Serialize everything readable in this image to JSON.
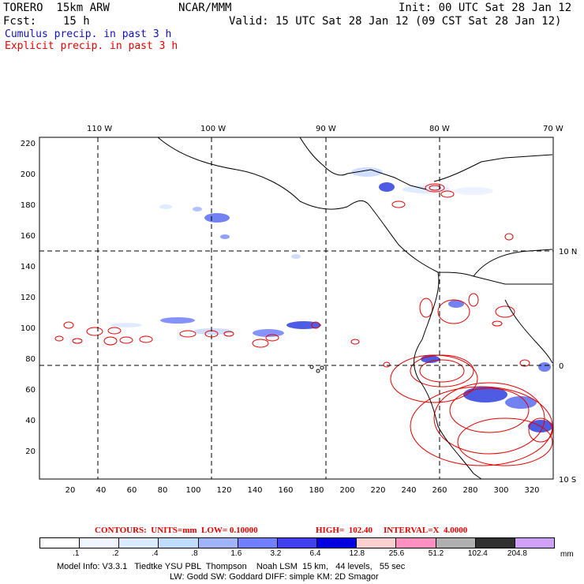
{
  "header": {
    "model": "TORERO  15km ARW",
    "org": "NCAR/MMM",
    "init": "Init: 00 UTC Sat 28 Jan 12",
    "fcst_label": "Fcst:",
    "fcst_value": "15 h",
    "valid": "Valid: 15 UTC Sat 28 Jan 12 (09 CST Sat 28 Jan 12)",
    "line_cumulus": "Cumulus precip. in past 3 h",
    "line_explicit": "Explicit precip. in past 3 h"
  },
  "colors": {
    "cumulus": "#1010c0",
    "explicit": "#e00000",
    "coast": "#000000"
  },
  "map": {
    "top_lon_labels": [
      "110 W",
      "100 W",
      "90 W",
      "80 W",
      "70 W"
    ],
    "right_lat_labels": [
      "10 N",
      "0",
      "10 S"
    ],
    "y_ticks": [
      "220",
      "200",
      "180",
      "160",
      "140",
      "120",
      "100",
      "80",
      "60",
      "40",
      "20"
    ],
    "x_ticks": [
      "20",
      "40",
      "60",
      "80",
      "100",
      "120",
      "140",
      "160",
      "180",
      "200",
      "220",
      "240",
      "260",
      "280",
      "300",
      "320"
    ]
  },
  "contour_info": {
    "units": "CONTOURS:  UNITS=mm  LOW= 0.10000",
    "high": "HIGH=  102.40",
    "interval": "INTERVAL=X  4.0000"
  },
  "colorbar": {
    "labels": [
      ".1",
      ".2",
      ".4",
      ".8",
      "1.6",
      "3.2",
      "6.4",
      "12.8",
      "25.6",
      "51.2",
      "102.4",
      "204.8"
    ],
    "unit": "mm",
    "colors": [
      "#ffffff",
      "#f0f4ff",
      "#dceaff",
      "#c0dcff",
      "#a0b4ff",
      "#7080ff",
      "#4040f0",
      "#0000e0",
      "#ffd0d0",
      "#ff90c0",
      "#b0b0b0",
      "#303030",
      "#d0a0ff"
    ]
  },
  "footer": {
    "line1": "Model Info: V3.3.1   Tiedtke YSU PBL  Thompson    Noah LSM  15 km,   44 levels,   55 sec",
    "line2": "LW: Godd SW: Goddard DIFF: simple KM: 2D Smagor"
  }
}
